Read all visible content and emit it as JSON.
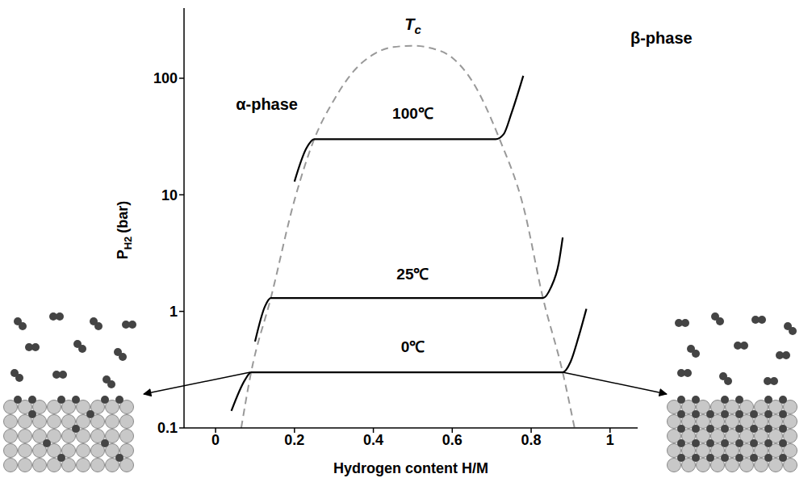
{
  "chart_data": {
    "type": "line",
    "xlabel": "Hydrogen content H/M",
    "ylabel": {
      "main": "P",
      "sub": "H2",
      "unit": "(bar)"
    },
    "log": "y",
    "grid": false,
    "xlim": [
      -0.08,
      1.07
    ],
    "ylim": [
      0.1,
      400
    ],
    "xticks": [
      0,
      0.2,
      0.4,
      0.6,
      0.8,
      1
    ],
    "yticks": [
      0.1,
      1,
      10,
      100
    ],
    "series": [
      {
        "color": "#999999",
        "line_style": "dashed",
        "marker": "none",
        "x": [
          0.065,
          0.09,
          0.14,
          0.2,
          0.25,
          0.3,
          0.35,
          0.4,
          0.45,
          0.5,
          0.55,
          0.6,
          0.65,
          0.72,
          0.78,
          0.83,
          0.88,
          0.91
        ],
        "values": [
          0.1,
          0.3,
          1.3,
          9,
          30,
          65,
          115,
          160,
          185,
          190,
          180,
          150,
          95,
          30,
          8,
          1.3,
          0.3,
          0.1
        ]
      },
      {
        "name": "100℃",
        "label_at": [
          0.5,
          50
        ],
        "color": "#000000",
        "line_style": "solid",
        "marker": "none",
        "x": [
          0.2,
          0.23,
          0.25,
          0.71,
          0.73,
          0.75,
          0.78
        ],
        "values": [
          13,
          25,
          30,
          30,
          33,
          50,
          105
        ]
      },
      {
        "name": "25℃",
        "label_at": [
          0.5,
          2.1
        ],
        "color": "#000000",
        "line_style": "solid",
        "marker": "none",
        "x": [
          0.1,
          0.125,
          0.14,
          0.83,
          0.85,
          0.87,
          0.88
        ],
        "values": [
          0.55,
          1.1,
          1.3,
          1.3,
          1.6,
          2.6,
          4.3
        ]
      },
      {
        "name": "0℃",
        "label_at": [
          0.5,
          0.5
        ],
        "color": "#000000",
        "line_style": "solid",
        "marker": "none",
        "x": [
          0.04,
          0.075,
          0.09,
          0.88,
          0.9,
          0.92,
          0.94
        ],
        "values": [
          0.14,
          0.26,
          0.3,
          0.3,
          0.37,
          0.6,
          1.05
        ]
      }
    ],
    "annotations": [
      {
        "text": "α-phase",
        "x": 0.13,
        "y": 60
      },
      {
        "text": "β-phase",
        "x": 1.13,
        "y": 220
      },
      {
        "text": {
          "main": "T",
          "sub": "c"
        },
        "x": 0.5,
        "y": 290
      }
    ]
  }
}
